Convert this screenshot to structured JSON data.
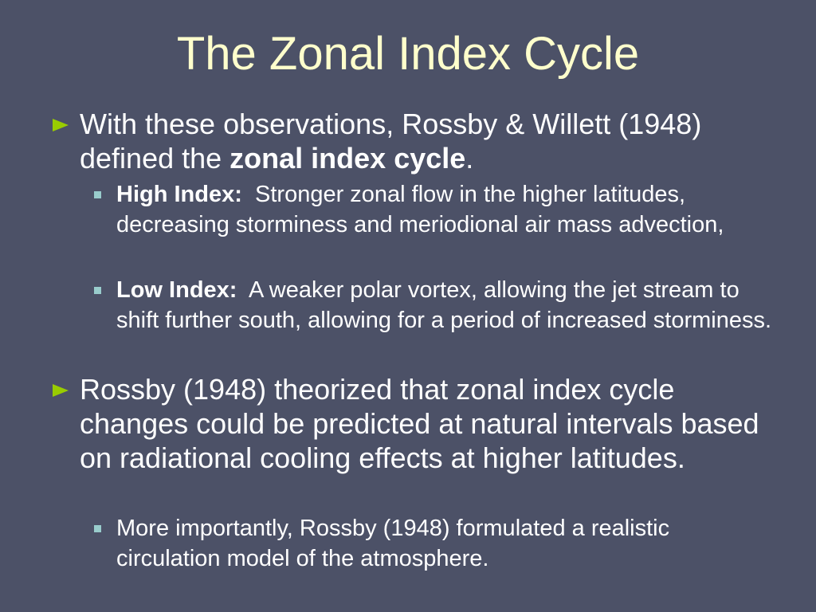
{
  "title": "The Zonal Index Cycle",
  "bullets": [
    {
      "text": [
        "With these observations, Rossby & Willett (1948) defined the ",
        "zonal index cycle",
        "."
      ],
      "subbullets": [
        {
          "label": "High Index:",
          "text": "Stronger zonal flow in the higher latitudes, decreasing storminess and meriodional air mass advection,"
        },
        {
          "label": "Low Index:",
          "text": "A weaker polar vortex, allowing the jet stream to shift further south, allowing for a period of increased storminess."
        }
      ]
    },
    {
      "text": [
        "Rossby (1948) theorized that zonal index cycle changes could be predicted at natural intervals based on radiational cooling effects at higher latitudes."
      ],
      "subbullets": [
        {
          "text": "More importantly, Rossby (1948) formulated a realistic circulation model of the atmosphere."
        }
      ]
    }
  ]
}
